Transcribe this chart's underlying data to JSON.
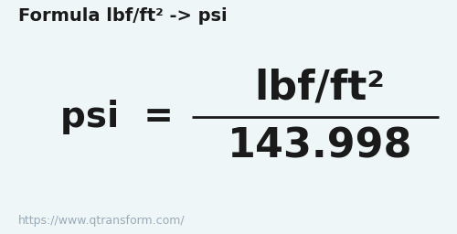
{
  "background_color": "#eef6f8",
  "title_text": "Formula lbf/ft² -> psi",
  "title_fontsize": 14,
  "title_color": "#1a1a1a",
  "title_bold": true,
  "numerator_text": "lbf/ft²",
  "numerator_fontsize": 32,
  "numerator_bold": true,
  "denominator_text": "143.998",
  "denominator_fontsize": 32,
  "denominator_bold": true,
  "lhs_text": "psi  =",
  "lhs_fontsize": 28,
  "lhs_bold": true,
  "line_color": "#1a1a1a",
  "url_text": "https://www.qtransform.com/",
  "url_fontsize": 9,
  "url_color": "#9aabb8"
}
